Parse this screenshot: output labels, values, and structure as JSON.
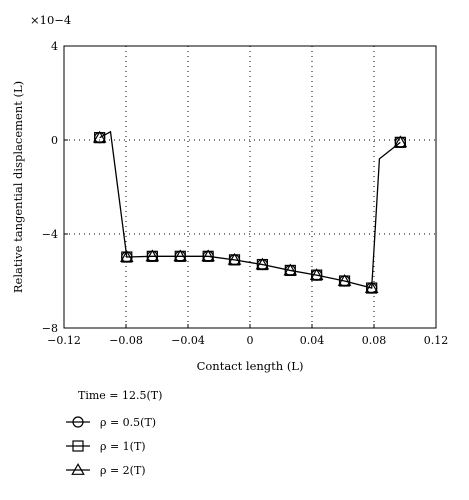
{
  "chart_data": {
    "type": "line",
    "title": "",
    "xlabel": "Contact length (L)",
    "ylabel": "Relative tangential displacement (L)",
    "exponent_label": "×10−4",
    "xlim": [
      -0.12,
      0.12
    ],
    "ylim": [
      -8,
      4
    ],
    "xticks": [
      -0.12,
      -0.08,
      -0.04,
      0,
      0.04,
      0.08,
      0.12
    ],
    "xtick_labels": [
      "−0.12",
      "−0.08",
      "−0.04",
      "0",
      "0.04",
      "0.08",
      "0.12"
    ],
    "yticks": [
      -8,
      -4,
      0,
      4
    ],
    "ytick_labels": [
      "−8",
      "−4",
      "0",
      "4"
    ],
    "grid": true,
    "legend_position": "below",
    "legend_header": "Time = 12.5(T)",
    "line_color": "#000000",
    "line_x": [
      -0.097,
      -0.09,
      -0.0795,
      -0.063,
      -0.045,
      -0.027,
      -0.01,
      0.008,
      0.026,
      0.043,
      0.061,
      0.0785,
      0.0835,
      0.097
    ],
    "line_y": [
      0.1,
      0.35,
      -4.98,
      -4.95,
      -4.95,
      -4.95,
      -5.1,
      -5.3,
      -5.55,
      -5.75,
      -6.0,
      -6.3,
      -0.8,
      -0.1
    ],
    "series": [
      {
        "name": "ρ = 0.5(T)",
        "marker": "circle",
        "x": [
          -0.097,
          -0.0795,
          -0.063,
          -0.045,
          -0.027,
          -0.01,
          0.008,
          0.026,
          0.043,
          0.061,
          0.0785,
          0.097
        ],
        "y": [
          0.1,
          -4.98,
          -4.95,
          -4.95,
          -4.95,
          -5.1,
          -5.3,
          -5.55,
          -5.75,
          -6.0,
          -6.3,
          -0.1
        ]
      },
      {
        "name": "ρ = 1(T)",
        "marker": "square",
        "x": [
          -0.097,
          -0.0795,
          -0.063,
          -0.045,
          -0.027,
          -0.01,
          0.008,
          0.026,
          0.043,
          0.061,
          0.0785,
          0.097
        ],
        "y": [
          0.1,
          -4.98,
          -4.95,
          -4.95,
          -4.95,
          -5.1,
          -5.3,
          -5.55,
          -5.75,
          -6.0,
          -6.3,
          -0.1
        ]
      },
      {
        "name": "ρ = 2(T)",
        "marker": "triangle",
        "x": [
          -0.097,
          -0.0795,
          -0.063,
          -0.045,
          -0.027,
          -0.01,
          0.008,
          0.026,
          0.043,
          0.061,
          0.0785,
          0.097
        ],
        "y": [
          0.1,
          -4.98,
          -4.95,
          -4.95,
          -4.95,
          -5.1,
          -5.3,
          -5.55,
          -5.75,
          -6.0,
          -6.3,
          -0.1
        ]
      }
    ]
  }
}
